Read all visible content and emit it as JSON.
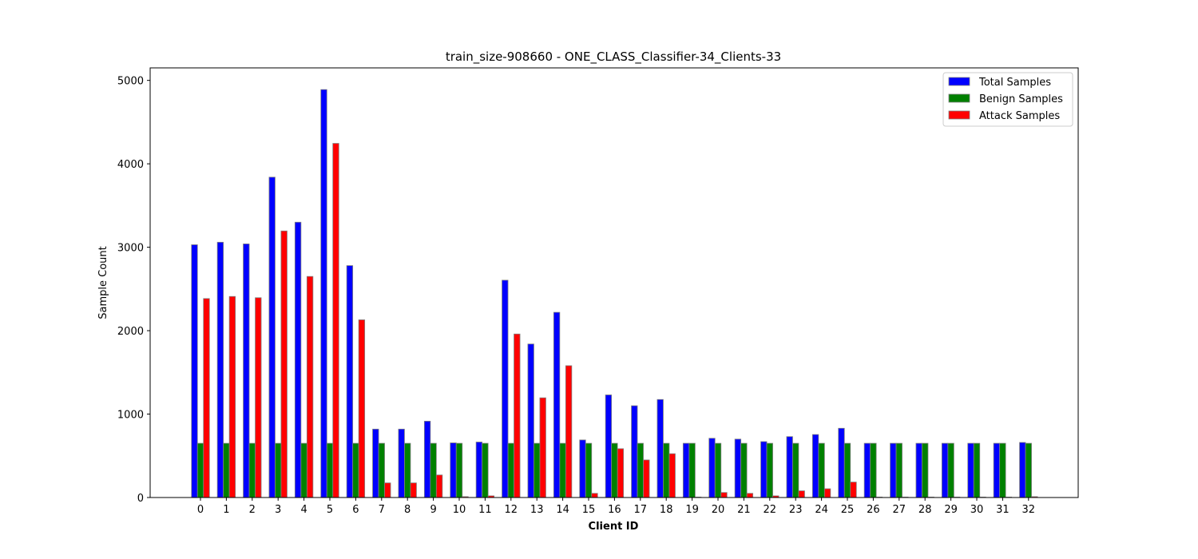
{
  "chart_data": {
    "type": "bar",
    "title": "train_size-908660 - ONE_CLASS_Classifier-34_Clients-33",
    "xlabel": "Client ID",
    "ylabel": "Sample Count",
    "ylim": [
      0,
      5150
    ],
    "yticks": [
      0,
      1000,
      2000,
      3000,
      4000,
      5000
    ],
    "grid": false,
    "legend_position": "top-right",
    "categories": [
      "0",
      "1",
      "2",
      "3",
      "4",
      "5",
      "6",
      "7",
      "8",
      "9",
      "10",
      "11",
      "12",
      "13",
      "14",
      "15",
      "16",
      "17",
      "18",
      "19",
      "20",
      "21",
      "22",
      "23",
      "24",
      "25",
      "26",
      "27",
      "28",
      "29",
      "30",
      "31",
      "32"
    ],
    "series": [
      {
        "name": "Total Samples",
        "color": "#0000ff",
        "values": [
          3030,
          3060,
          3040,
          3840,
          3300,
          4890,
          2780,
          820,
          820,
          915,
          655,
          665,
          2605,
          1840,
          2220,
          690,
          1230,
          1100,
          1175,
          650,
          710,
          700,
          670,
          730,
          755,
          830,
          650,
          650,
          650,
          650,
          650,
          650,
          660
        ]
      },
      {
        "name": "Benign Samples",
        "color": "#008000",
        "values": [
          650,
          650,
          650,
          650,
          650,
          650,
          650,
          650,
          650,
          650,
          650,
          650,
          650,
          650,
          650,
          650,
          650,
          650,
          650,
          650,
          650,
          650,
          650,
          650,
          650,
          650,
          650,
          650,
          650,
          650,
          650,
          650,
          650
        ]
      },
      {
        "name": "Attack Samples",
        "color": "#ff0000",
        "values": [
          2385,
          2410,
          2395,
          3195,
          2650,
          4245,
          2130,
          175,
          175,
          270,
          10,
          20,
          1960,
          1195,
          1580,
          50,
          585,
          450,
          525,
          5,
          60,
          50,
          20,
          80,
          105,
          185,
          5,
          5,
          5,
          5,
          5,
          5,
          10
        ]
      }
    ]
  }
}
